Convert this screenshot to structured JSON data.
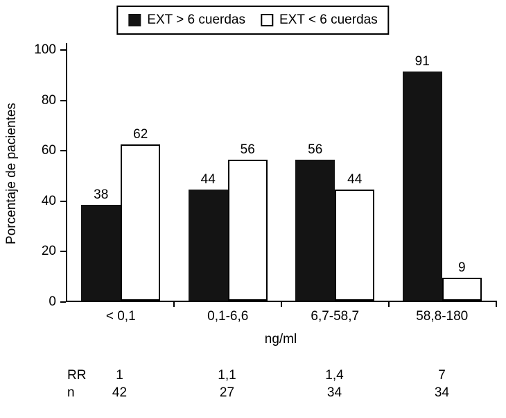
{
  "chart_data": {
    "type": "bar",
    "categories": [
      "< 0,1",
      "0,1-6,6",
      "6,7-58,7",
      "58,8-180"
    ],
    "series": [
      {
        "name": "EXT > 6 cuerdas",
        "color": "#141414",
        "values": [
          38,
          44,
          56,
          91
        ]
      },
      {
        "name": "EXT < 6 cuerdas",
        "color": "#ffffff",
        "values": [
          62,
          56,
          44,
          9
        ]
      }
    ],
    "title": "",
    "xlabel": "ng/ml",
    "ylabel": "Porcentaje de pacientes",
    "ylim": [
      0,
      100
    ],
    "yticks": [
      0,
      20,
      40,
      60,
      80,
      100
    ],
    "legend_position": "top",
    "grid": false,
    "bar_labels_shown": true
  },
  "footer": {
    "rows": [
      {
        "label": "RR",
        "values": [
          "1",
          "1,1",
          "1,4",
          "7"
        ]
      },
      {
        "label": "n",
        "values": [
          "42",
          "27",
          "34",
          "34"
        ]
      }
    ]
  },
  "colors": {
    "bar_dark": "#141414",
    "bar_light": "#ffffff",
    "axis": "#000000",
    "background": "#ffffff"
  }
}
